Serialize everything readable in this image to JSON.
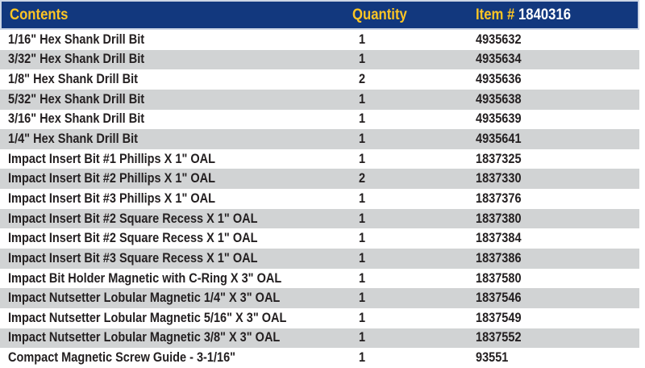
{
  "table": {
    "columns": {
      "contents": "Contents",
      "quantity": "Quantity",
      "item_label": "Item #",
      "item_number": "1840316"
    },
    "rows": [
      {
        "contents": "1/16\" Hex Shank Drill Bit",
        "quantity": "1",
        "item": "4935632"
      },
      {
        "contents": "3/32\" Hex Shank Drill Bit",
        "quantity": "1",
        "item": "4935634"
      },
      {
        "contents": "1/8\" Hex Shank Drill Bit",
        "quantity": "2",
        "item": "4935636"
      },
      {
        "contents": "5/32\" Hex Shank Drill Bit",
        "quantity": "1",
        "item": "4935638"
      },
      {
        "contents": "3/16\" Hex Shank Drill Bit",
        "quantity": "1",
        "item": "4935639"
      },
      {
        "contents": "1/4\" Hex Shank Drill Bit",
        "quantity": "1",
        "item": "4935641"
      },
      {
        "contents": "Impact Insert Bit #1 Phillips X 1\" OAL",
        "quantity": "1",
        "item": "1837325"
      },
      {
        "contents": "Impact Insert Bit #2 Phillips X 1\" OAL",
        "quantity": "2",
        "item": "1837330"
      },
      {
        "contents": "Impact Insert Bit #3 Phillips X 1\" OAL",
        "quantity": "1",
        "item": "1837376"
      },
      {
        "contents": "Impact Insert Bit #2 Square Recess X 1\" OAL",
        "quantity": "1",
        "item": "1837380"
      },
      {
        "contents": "Impact Insert Bit #2 Square Recess X 1\" OAL",
        "quantity": "1",
        "item": "1837384"
      },
      {
        "contents": "Impact Insert Bit #3 Square Recess X 1\" OAL",
        "quantity": "1",
        "item": "1837386"
      },
      {
        "contents": "Impact Bit Holder Magnetic with C-Ring X 3\" OAL",
        "quantity": "1",
        "item": "1837580"
      },
      {
        "contents": "Impact Nutsetter Lobular Magnetic 1/4\" X 3\" OAL",
        "quantity": "1",
        "item": "1837546"
      },
      {
        "contents": "Impact Nutsetter Lobular Magnetic 5/16\" X 3\" OAL",
        "quantity": "1",
        "item": "1837549"
      },
      {
        "contents": "Impact Nutsetter Lobular Magnetic 3/8\" X 3\" OAL",
        "quantity": "1",
        "item": "1837552"
      },
      {
        "contents": "Compact Magnetic Screw Guide - 3-1/16\"",
        "quantity": "1",
        "item": "93551"
      }
    ],
    "colors": {
      "header_bg": "#12387e",
      "header_accent": "#fdc524",
      "header_item_number": "#ffffff",
      "header_border": "#cdd6e6",
      "stripe": "#d1d3d4",
      "text": "#231f20"
    }
  }
}
